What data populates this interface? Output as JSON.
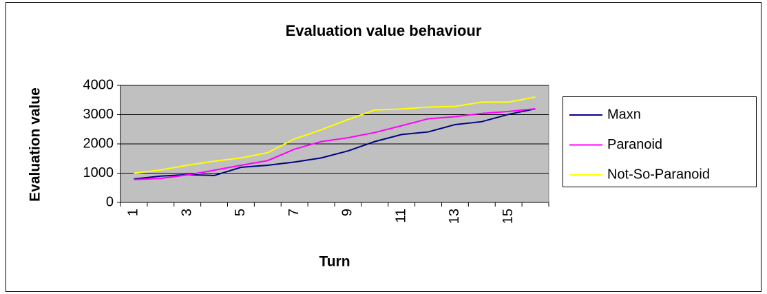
{
  "chart_data": {
    "type": "line",
    "title": "Evaluation value behaviour",
    "x_label": "Turn",
    "y_label": "Evaluation value",
    "categories": [
      1,
      null,
      3,
      null,
      5,
      null,
      7,
      null,
      9,
      null,
      11,
      null,
      13,
      null,
      15,
      null
    ],
    "series": [
      {
        "name": "Maxn",
        "color": "#000080",
        "values": [
          800,
          900,
          950,
          920,
          1200,
          1270,
          1380,
          1520,
          1760,
          2080,
          2320,
          2410,
          2660,
          2760,
          3010,
          3200
        ]
      },
      {
        "name": "Paranoid",
        "color": "#ff00ff",
        "values": [
          780,
          820,
          940,
          1100,
          1270,
          1430,
          1820,
          2080,
          2210,
          2390,
          2620,
          2860,
          2930,
          3040,
          3110,
          3200
        ]
      },
      {
        "name": "Not-So-Paranoid",
        "color": "#ffff00",
        "values": [
          1000,
          1110,
          1270,
          1410,
          1520,
          1700,
          2170,
          2480,
          2830,
          3160,
          3190,
          3260,
          3280,
          3430,
          3430,
          3600
        ]
      }
    ],
    "ylim": [
      0,
      4000
    ],
    "yticks": [
      0,
      1000,
      2000,
      3000,
      4000
    ],
    "grid": true,
    "legend": "right"
  }
}
